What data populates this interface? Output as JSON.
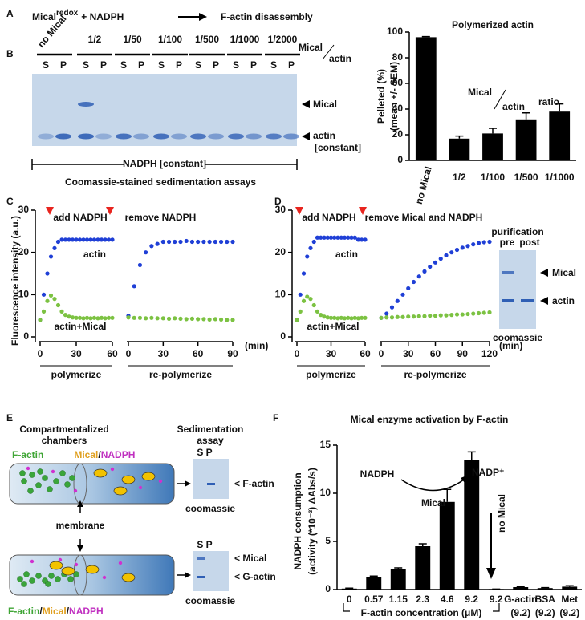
{
  "panel_labels": {
    "a": "A",
    "b": "B",
    "c": "C",
    "d": "D",
    "e": "E",
    "f": "F"
  },
  "panel_a": {
    "mical": "Mical",
    "redox": "redox",
    "plus": "+ NADPH",
    "result": "F-actin disassembly"
  },
  "gel_b": {
    "lanes": [
      "no Mical",
      "1/2",
      "1/50",
      "1/100",
      "1/500",
      "1/1000",
      "1/2000"
    ],
    "ratio_num": "Mical",
    "ratio_den": "actin",
    "s": "S",
    "p": "P",
    "band_mical": "Mical",
    "band_actin": "actin",
    "constant": "[constant]",
    "nadph": "NADPH [constant]",
    "caption": "Coomassie-stained sedimentation assays"
  },
  "gel_d": {
    "title": "purification",
    "pre": "pre",
    "post": "post",
    "mical": "Mical",
    "actin": "actin",
    "caption": "coomassie"
  },
  "panel_e": {
    "chambers1": "Compartmentalized",
    "chambers2": "chambers",
    "assay1": "Sedimentation",
    "assay2": "assay",
    "factin": "F-actin",
    "mical": "Mical",
    "slash": "/",
    "nadph": "NADPH",
    "membrane": "membrane",
    "sp": "S P",
    "band_factin": "< F-actin",
    "band_mical": "< Mical",
    "band_gactin": "< G-actin",
    "coomassie": "coomassie"
  },
  "chart_data": [
    {
      "type": "bar",
      "title": "Polymerized actin",
      "ylabel": "Pelleted (%)",
      "ylabel2": "(mean +/- SEM)",
      "categories": [
        "no Mical",
        "1/2",
        "1/100",
        "1/500",
        "1/1000"
      ],
      "values": [
        96,
        17,
        21,
        32,
        38
      ],
      "errors": [
        0.5,
        2,
        4,
        5,
        6
      ],
      "color": "#000000",
      "ylim": [
        0,
        100
      ],
      "yticks": [
        0,
        20,
        40,
        60,
        80,
        100
      ],
      "annotations": [
        "Mical",
        "actin",
        "ratio"
      ]
    },
    {
      "type": "line",
      "ylabel": "Fluorescence intensity (a.u.)",
      "stage": "polymerize",
      "annotations": [
        "add NADPH",
        "remove NADPH"
      ],
      "x": [
        0,
        3,
        6,
        9,
        12,
        15,
        18,
        21,
        24,
        27,
        30,
        33,
        36,
        39,
        42,
        45,
        48,
        51,
        54,
        57,
        60
      ],
      "series": [
        {
          "name": "actin",
          "color": "#1f3fd6",
          "values": [
            4,
            10,
            15,
            19,
            21,
            22.5,
            23,
            23,
            23,
            23,
            23,
            23,
            23,
            23,
            23,
            23,
            23,
            23,
            23,
            23,
            23
          ]
        },
        {
          "name": "actin+Mical",
          "color": "#7cc242",
          "values": [
            4,
            6,
            8.5,
            9.8,
            9,
            7.5,
            6,
            5.2,
            4.8,
            4.6,
            4.5,
            4.5,
            4.4,
            4.5,
            4.4,
            4.5,
            4.4,
            4.5,
            4.4,
            4.5,
            4.5
          ]
        }
      ],
      "xlim": [
        0,
        60
      ],
      "xticks": [
        0,
        30,
        60
      ],
      "ylim": [
        0,
        30
      ],
      "yticks": [
        0,
        10,
        20,
        30
      ]
    },
    {
      "type": "line",
      "stage": "re-polymerize",
      "xlabel": "(min)",
      "x": [
        0,
        5,
        10,
        15,
        20,
        25,
        30,
        35,
        40,
        45,
        50,
        55,
        60,
        65,
        70,
        75,
        80,
        85,
        90
      ],
      "series": [
        {
          "color": "#1f3fd6",
          "values": [
            5,
            12,
            17,
            20,
            21.5,
            22,
            22.5,
            22.5,
            22.5,
            22.5,
            22.7,
            22.5,
            22.5,
            22.5,
            22.5,
            22.5,
            22.5,
            22.5,
            22.5
          ]
        },
        {
          "color": "#7cc242",
          "values": [
            4.6,
            4.5,
            4.5,
            4.4,
            4.5,
            4.4,
            4.4,
            4.3,
            4.4,
            4.3,
            4.2,
            4.3,
            4.2,
            4.2,
            4.1,
            4.2,
            4.1,
            4,
            4
          ]
        }
      ],
      "xlim": [
        0,
        90
      ],
      "xticks": [
        0,
        30,
        60,
        90
      ],
      "ylim": [
        0,
        30
      ]
    },
    {
      "type": "line",
      "stage": "polymerize",
      "annotations": [
        "add NADPH",
        "remove Mical and NADPH"
      ],
      "x": [
        0,
        3,
        6,
        9,
        12,
        15,
        18,
        21,
        24,
        27,
        30,
        33,
        36,
        39,
        42,
        45,
        48,
        51,
        54,
        57,
        60
      ],
      "series": [
        {
          "name": "actin",
          "color": "#1f3fd6",
          "values": [
            4,
            10,
            15,
            19,
            21,
            22.5,
            23.5,
            23.5,
            23.5,
            23.5,
            23.5,
            23.5,
            23.5,
            23.5,
            23.5,
            23.5,
            23.5,
            23.5,
            23,
            23,
            23
          ]
        },
        {
          "name": "actin+Mical",
          "color": "#7cc242",
          "values": [
            4,
            6,
            8.5,
            9.5,
            9,
            7.5,
            6,
            5.2,
            4.8,
            4.6,
            4.5,
            4.5,
            4.4,
            4.5,
            4.4,
            4.5,
            4.4,
            4.5,
            4.4,
            4.5,
            4.5
          ]
        }
      ],
      "xlim": [
        0,
        60
      ],
      "xticks": [
        0,
        30,
        60
      ],
      "ylim": [
        0,
        30
      ],
      "yticks": [
        0,
        10,
        20,
        30
      ]
    },
    {
      "type": "line",
      "stage": "re-polymerize",
      "xlabel": "(min)",
      "x": [
        0,
        6,
        12,
        18,
        24,
        30,
        36,
        42,
        48,
        54,
        60,
        66,
        72,
        78,
        84,
        90,
        96,
        102,
        108,
        114,
        120
      ],
      "series": [
        {
          "color": "#1f3fd6",
          "values": [
            4.5,
            5.5,
            7,
            8.5,
            10,
            11.5,
            13,
            14.3,
            15.5,
            16.6,
            17.6,
            18.5,
            19.3,
            20,
            20.6,
            21.1,
            21.5,
            21.9,
            22.2,
            22.4,
            22.5
          ]
        },
        {
          "color": "#7cc242",
          "values": [
            4.5,
            4.6,
            4.6,
            4.7,
            4.7,
            4.8,
            4.8,
            4.9,
            4.9,
            5,
            5,
            5.1,
            5.1,
            5.2,
            5.3,
            5.3,
            5.4,
            5.5,
            5.6,
            5.7,
            5.8
          ]
        }
      ],
      "xlim": [
        0,
        120
      ],
      "xticks": [
        0,
        30,
        60,
        90,
        120
      ],
      "ylim": [
        0,
        30
      ]
    },
    {
      "type": "bar",
      "title": "Mical enzyme activation by F-actin",
      "ylabel": "NADPH consumption",
      "ylabel2": "(activity (*10⁻³) ΔAbs/s)",
      "xlabel": "F-actin concentration (μM)",
      "categories": [
        "0",
        "0.57",
        "1.15",
        "2.3",
        "4.6",
        "9.2",
        "9.2",
        "G-actin",
        "BSA",
        "Met"
      ],
      "category_sublabels": [
        null,
        null,
        null,
        null,
        null,
        null,
        null,
        "(9.2)",
        "(9.2)",
        "(9.2)"
      ],
      "values": [
        0.1,
        1.3,
        2.1,
        4.5,
        9.1,
        13.5,
        0.05,
        0.25,
        0.15,
        0.3
      ],
      "errors": [
        0.05,
        0.1,
        0.15,
        0.25,
        1.3,
        0.8,
        0,
        0.05,
        0.05,
        0.1
      ],
      "color": "#000000",
      "ylim": [
        0,
        15
      ],
      "yticks": [
        0,
        5,
        10,
        15
      ],
      "annotations": [
        "NADPH",
        "NADP⁺",
        "Mical",
        "no Mical"
      ]
    }
  ]
}
